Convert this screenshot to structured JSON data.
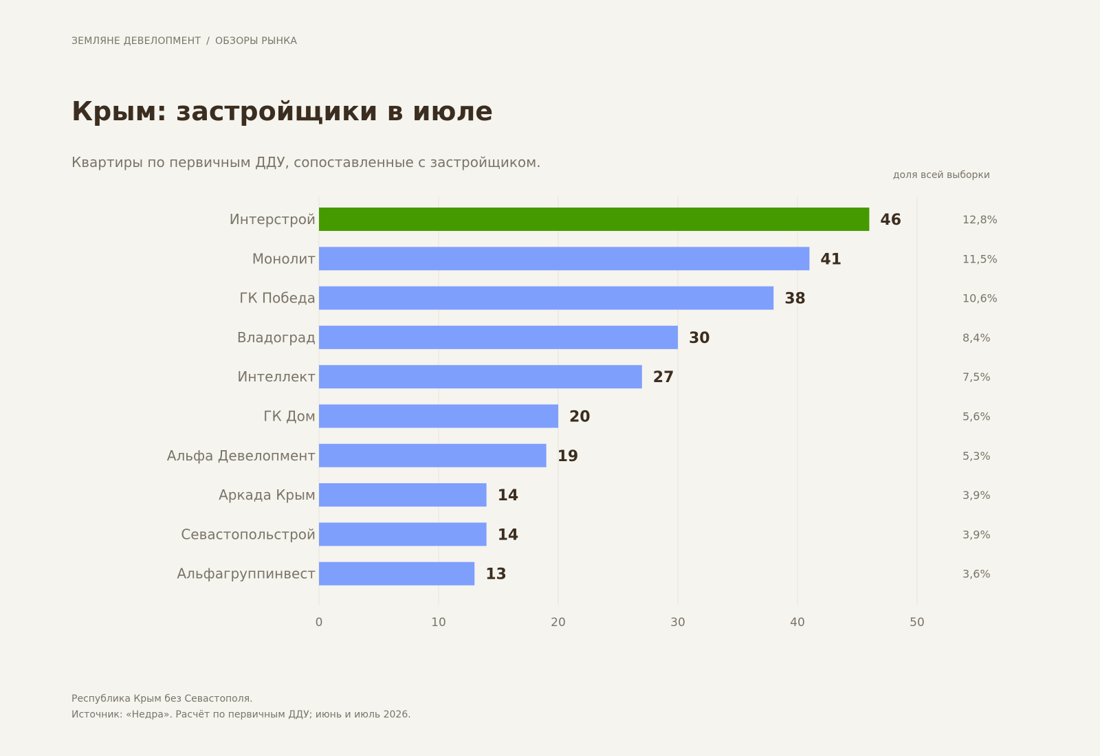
{
  "header": {
    "brand": "ЗЕМЛЯНЕ ДЕВЕЛОПМЕНТ",
    "separator": "/",
    "section": "ОБЗОРЫ РЫНКА"
  },
  "title": "Крым: застройщики в июле",
  "subtitle": "Квартиры по первичным ДДУ, сопоставленные с застройщиком.",
  "footer": {
    "note": "Республика Крым без Севастополя.",
    "source": "Источник: «Недра». Расчёт по первичным ДДУ; июнь и июль 2026."
  },
  "colors": {
    "highlight": "#459a00",
    "bar": "#7f9ffd",
    "background": "#f5f4ee",
    "text_dark": "#3b2d1f",
    "text_muted": "#7a7468",
    "grid": "#e6e3da"
  },
  "chart_data": {
    "type": "bar",
    "orientation": "horizontal",
    "categories": [
      "Интерстрой",
      "Монолит",
      "ГК Победа",
      "Владоград",
      "Интеллект",
      "ГК Дом",
      "Альфа Девелопмент",
      "Аркада Крым",
      "Севастопольстрой",
      "Альфагруппинвест"
    ],
    "values": [
      46,
      41,
      38,
      30,
      27,
      20,
      19,
      14,
      14,
      13
    ],
    "highlighted_category": "Интерстрой",
    "share_header": "доля всей выборки",
    "shares": [
      "12,8%",
      "11,5%",
      "10,6%",
      "8,4%",
      "7,5%",
      "5,6%",
      "5,3%",
      "3,9%",
      "3,9%",
      "3,6%"
    ],
    "xlim": [
      0,
      50
    ],
    "xticks": [
      0,
      10,
      20,
      30,
      40,
      50
    ],
    "grid": true,
    "xlabel": "",
    "ylabel": ""
  }
}
